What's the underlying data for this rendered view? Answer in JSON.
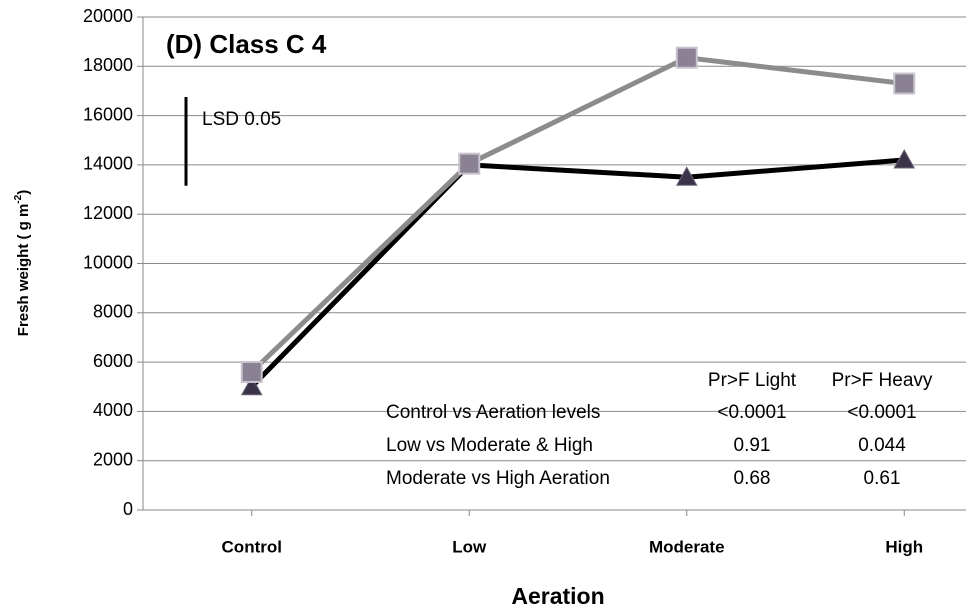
{
  "chart_data": {
    "type": "line",
    "title": "(D) Class C 4",
    "xlabel": "Aeration",
    "ylabel": [
      "Fresh weight ( g m",
      "-2",
      ")"
    ],
    "categories": [
      "Control",
      "Low",
      "Moderate",
      "High"
    ],
    "series": [
      {
        "color": "#000000",
        "marker": "triangle",
        "marker_color": "#3b3347",
        "values": [
          5000,
          14000,
          13500,
          14200
        ]
      },
      {
        "color": "#8c8c8c",
        "marker": "square",
        "marker_color": "#8a8193",
        "values": [
          5600,
          14050,
          18350,
          17300
        ]
      }
    ],
    "ylim": [
      0,
      20000
    ],
    "yticks": [
      0,
      2000,
      4000,
      6000,
      8000,
      10000,
      12000,
      14000,
      16000,
      18000,
      20000
    ],
    "grid": true,
    "lsd": {
      "label": "LSD 0.05",
      "value": 3600
    },
    "annotation_table": {
      "header": [
        "Pr>F Light",
        "Pr>F Heavy"
      ],
      "rows": [
        [
          "Control vs Aeration levels",
          "<0.0001",
          "<0.0001"
        ],
        [
          "Low vs Moderate & High",
          "0.91",
          "0.044"
        ],
        [
          "Moderate vs High Aeration",
          "0.68",
          "0.61"
        ]
      ]
    }
  }
}
